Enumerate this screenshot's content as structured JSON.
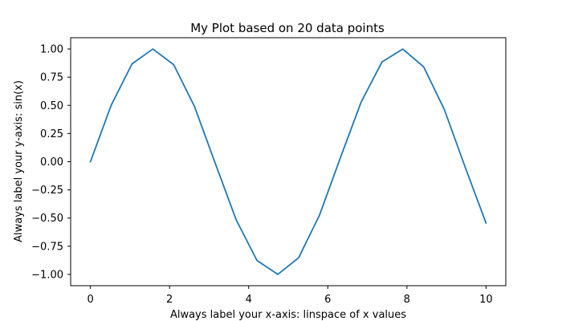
{
  "chart_data": {
    "type": "line",
    "title": "My Plot based on 20 data points",
    "xlabel": "Always label your x-axis: linspace of x values",
    "ylabel": "Always label your y-axis: sin(x)",
    "x": [
      0.0,
      0.5263,
      1.0526,
      1.5789,
      2.1053,
      2.6316,
      3.1579,
      3.6842,
      4.2105,
      4.7368,
      5.2632,
      5.7895,
      6.3158,
      6.8421,
      7.3684,
      7.8947,
      8.4211,
      8.9474,
      9.4737,
      10.0
    ],
    "series": [
      {
        "values": [
          0.0,
          0.5022,
          0.8687,
          0.9999,
          0.8605,
          0.4889,
          -0.0163,
          -0.5155,
          -0.8767,
          -0.9997,
          -0.8521,
          -0.4755,
          0.0326,
          0.5286,
          0.8844,
          0.9994,
          0.8434,
          0.4619,
          -0.049,
          -0.544
        ],
        "color": "#1f77b4"
      }
    ],
    "xlim": [
      -0.5,
      10.5
    ],
    "ylim": [
      -1.1,
      1.1
    ],
    "x_ticks": [
      0,
      2,
      4,
      6,
      8,
      10
    ],
    "x_tick_labels": [
      "0",
      "2",
      "4",
      "6",
      "8",
      "10"
    ],
    "y_ticks": [
      1.0,
      0.75,
      0.5,
      0.25,
      0.0,
      -0.25,
      -0.5,
      -0.75,
      -1.0
    ],
    "y_tick_labels": [
      "1.00",
      "0.75",
      "0.50",
      "0.25",
      "0.00",
      "−0.25",
      "−0.50",
      "−0.75",
      "−1.00"
    ],
    "grid": false,
    "legend": "none"
  }
}
